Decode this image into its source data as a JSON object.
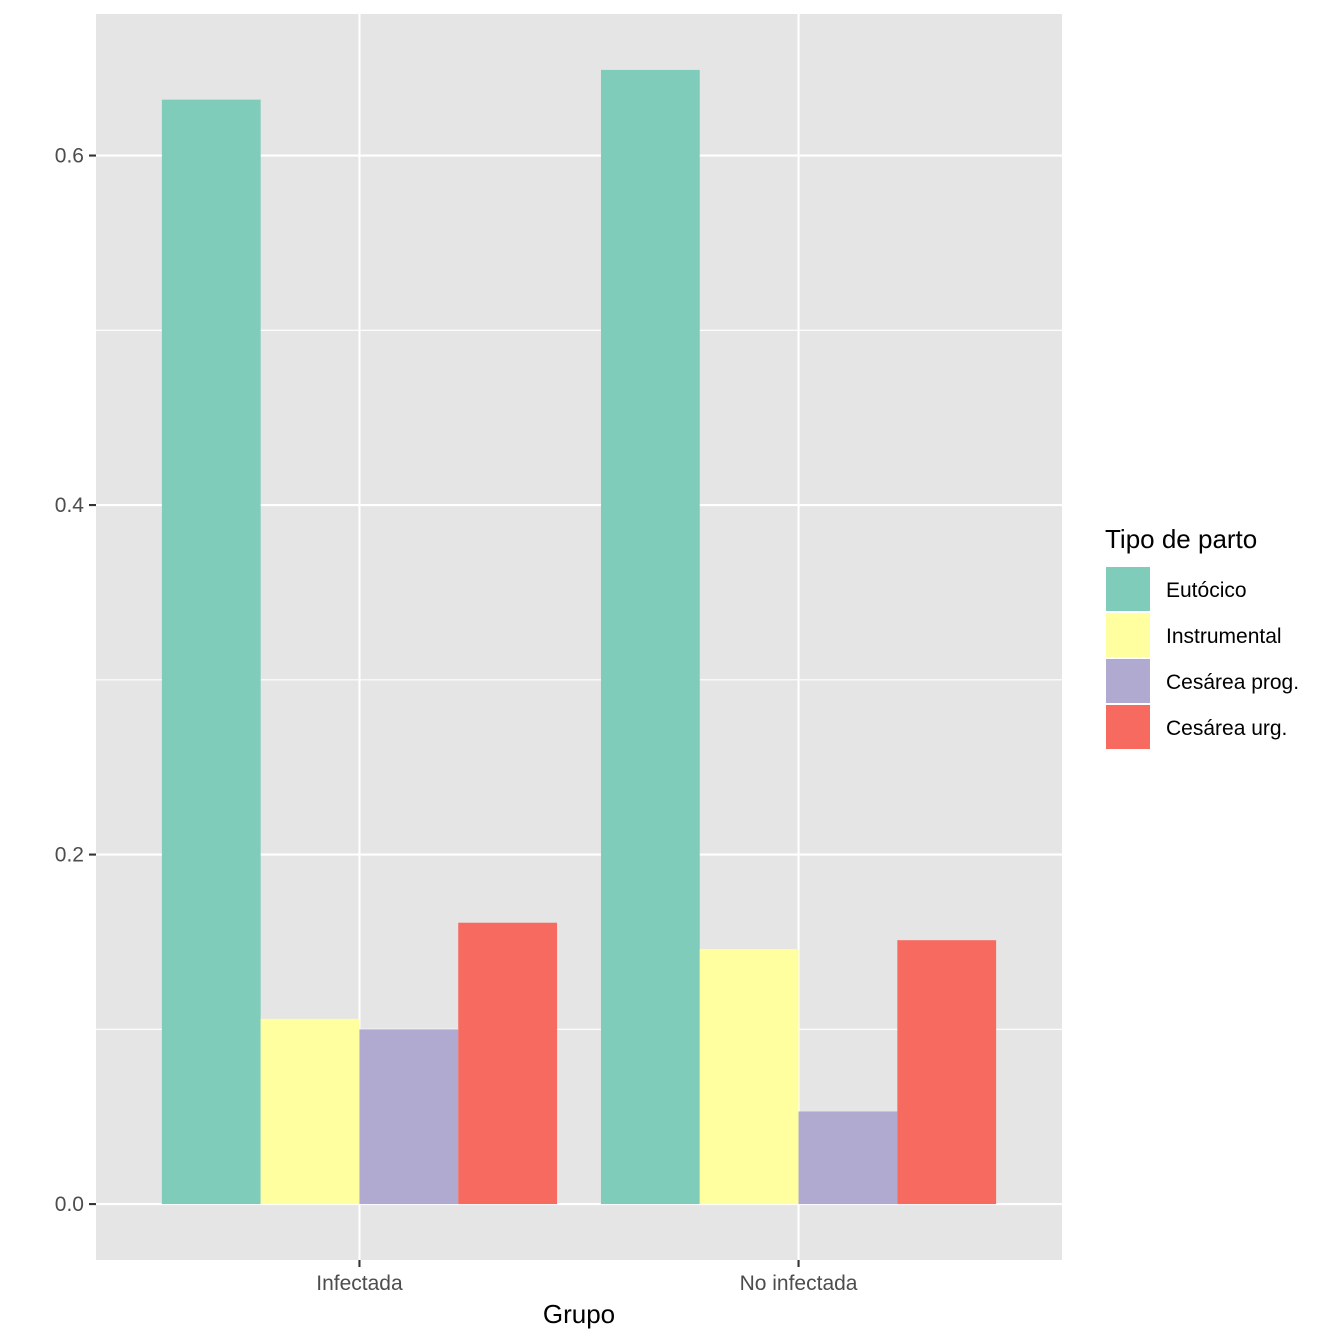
{
  "chart_data": {
    "type": "bar",
    "title": "",
    "xlabel": "Grupo",
    "ylabel": "",
    "categories": [
      "Infectada",
      "No infectada"
    ],
    "series": [
      {
        "name": "Eutócico",
        "color": "#7fccba",
        "values": [
          0.632,
          0.649
        ]
      },
      {
        "name": "Instrumental",
        "color": "#ffffa0",
        "values": [
          0.106,
          0.146
        ]
      },
      {
        "name": "Cesárea prog.",
        "color": "#b0aad0",
        "values": [
          0.1,
          0.053
        ]
      },
      {
        "name": "Cesárea urg.",
        "color": "#f66a60",
        "values": [
          0.161,
          0.151
        ]
      }
    ],
    "y_ticks": [
      {
        "value": 0.0,
        "label": "0.0"
      },
      {
        "value": 0.2,
        "label": "0.2"
      },
      {
        "value": 0.4,
        "label": "0.4"
      },
      {
        "value": 0.6,
        "label": "0.6"
      }
    ],
    "ylim": [
      -0.032,
      0.681
    ],
    "grid": true,
    "legend": {
      "title": "Tipo de parto",
      "position": "right"
    }
  }
}
